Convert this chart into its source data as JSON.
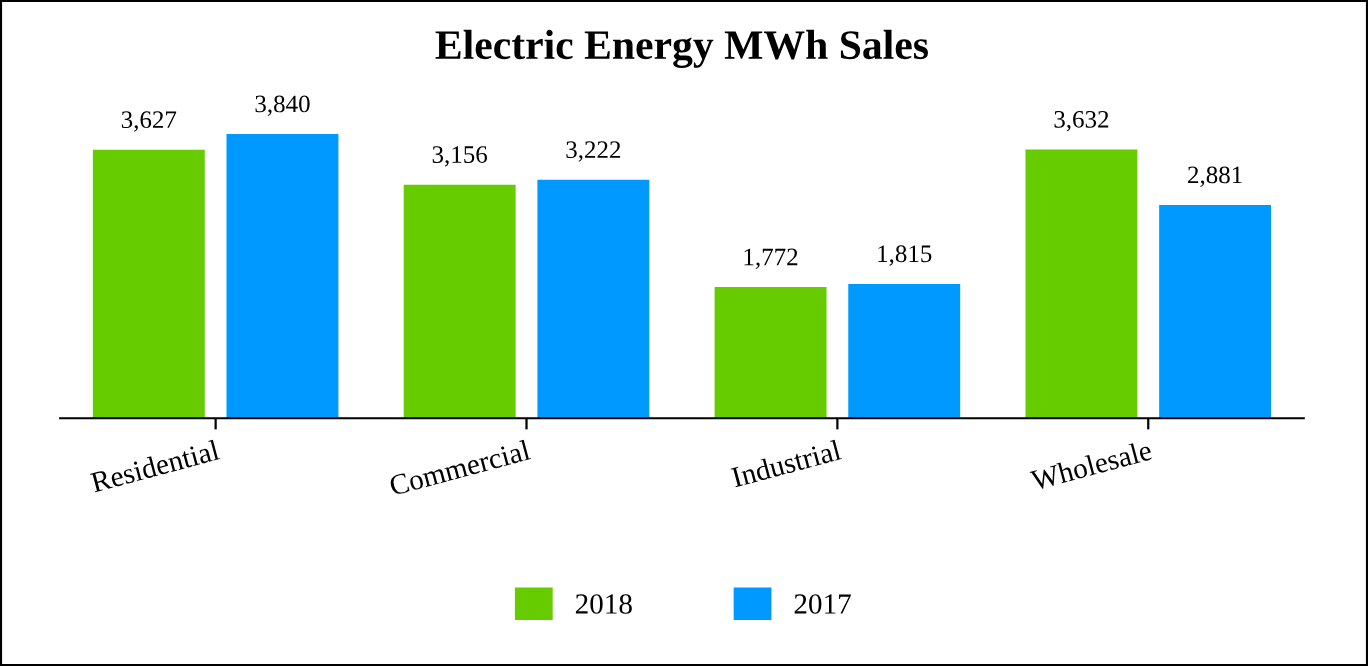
{
  "chart_data": {
    "type": "bar",
    "title": "Electric Energy MWh Sales",
    "categories": [
      "Residential",
      "Commercial",
      "Industrial",
      "Wholesale"
    ],
    "series": [
      {
        "name": "2018",
        "color": "#66cc00",
        "values": [
          3627,
          3156,
          1772,
          3632
        ],
        "value_labels": [
          "3,627",
          "3,156",
          "1,772",
          "3,632"
        ]
      },
      {
        "name": "2017",
        "color": "#0099ff",
        "values": [
          3840,
          3222,
          1815,
          2881
        ],
        "value_labels": [
          "3,840",
          "3,222",
          "1,815",
          "2,881"
        ]
      }
    ],
    "legend": "bottom",
    "grid": false,
    "tick_labels": "x"
  }
}
